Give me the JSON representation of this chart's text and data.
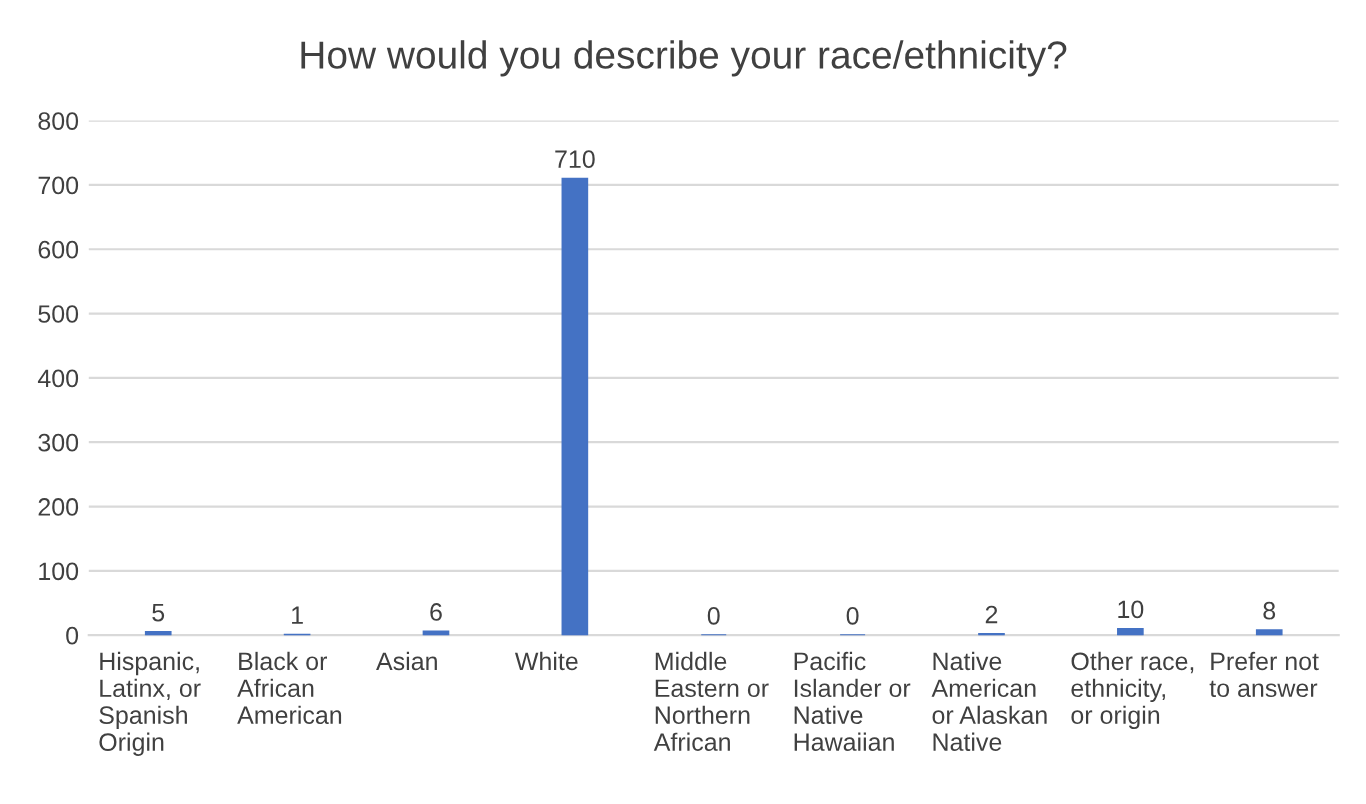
{
  "chart_data": {
    "type": "bar",
    "title": "How would you describe your race/ethnicity?",
    "categories": [
      "Hispanic,\nLatinx, or\nSpanish\nOrigin",
      "Black or\nAfrican\nAmerican",
      "Asian",
      "White",
      "Middle\nEastern or\nNorthern\nAfrican",
      "Pacific\nIslander or\nNative\nHawaiian",
      "Native\nAmerican\nor Alaskan\nNative",
      "Other race,\nethnicity,\nor origin",
      "Prefer not\nto answer"
    ],
    "values": [
      5,
      1,
      6,
      710,
      0,
      0,
      2,
      10,
      8
    ],
    "color": "#4472c4",
    "ylim": [
      0,
      800
    ],
    "yticks": [
      0,
      100,
      200,
      300,
      400,
      500,
      600,
      700,
      800
    ],
    "grid": "y",
    "data_labels": true
  }
}
